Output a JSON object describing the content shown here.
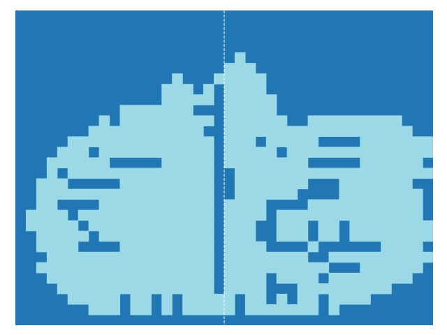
{
  "colors": {
    "wall": "#2077b4",
    "floor": "#9bd9e6",
    "divider": "#ffffff"
  },
  "maze": {
    "cols": 40,
    "rows": 30,
    "rows_map": [
      "0000000000000000000000000000000000000000",
      "0000000000000000000000000000000000000000",
      "0000000000000000000000000000000000000000",
      "0000000000000000000000000000000000000000",
      "0000000000000000000001000000000000000000",
      "0000000000000000000011100000000000000000",
      "0000000000000001000111110000000000000000",
      "0000000000000111101111110000000000000000",
      "0000000000001111111111111000000000000000",
      "0000000000111111110111111000000000000000",
      "0000000011111111111111111111111111111000",
      "0000000111111111111111111111111111111100",
      "0000011111111111111111111111111111111111",
      "0000111111111111111111111111111111111111",
      "0001111111111111111111111111111111111110",
      "0001111111111111111111111111111111111111",
      "0011111111111111111111111111111111111100",
      "0011111111111111111111111111111111111110",
      "0011111111111111111111111111111111111110",
      "0111111111111111111111111111111111111110",
      "0111111111111111111111111111111111111111",
      "0011111111111111111111111111111111111111",
      "0011111111111111111111111111111111111110",
      "0001111111111111111111111111111111111111",
      "0011111111111111111111111111111111111110",
      "0001111111111111111111111111111111111100",
      "0000111111111111111111111111111111110000",
      "0000011111111111111111111111111111000000",
      "0000000111111111111111111111111000000000",
      "0000000000000000000000000000000000000000"
    ],
    "inner_walls": [
      [
        6,
        5,
        1
      ],
      [
        7,
        11,
        3
      ],
      [
        8,
        12,
        2
      ],
      [
        9,
        9,
        1
      ],
      [
        9,
        17,
        2
      ],
      [
        10,
        5,
        1
      ],
      [
        10,
        9,
        1
      ],
      [
        10,
        26,
        2
      ],
      [
        11,
        5,
        1
      ],
      [
        11,
        18,
        1
      ],
      [
        12,
        23,
        1
      ],
      [
        12,
        29,
        4
      ],
      [
        13,
        7,
        1
      ],
      [
        13,
        25,
        1
      ],
      [
        14,
        9,
        5
      ],
      [
        14,
        28,
        5
      ],
      [
        15,
        4,
        1
      ],
      [
        15,
        20,
        1
      ],
      [
        16,
        5,
        5
      ],
      [
        16,
        19,
        2
      ],
      [
        16,
        28,
        3
      ],
      [
        17,
        19,
        2
      ],
      [
        17,
        27,
        4
      ],
      [
        18,
        4,
        4
      ],
      [
        18,
        24,
        4
      ],
      [
        19,
        5,
        1
      ],
      [
        19,
        24,
        1
      ],
      [
        20,
        6,
        1
      ],
      [
        20,
        23,
        2
      ],
      [
        20,
        28,
        1
      ],
      [
        20,
        31,
        1
      ],
      [
        21,
        7,
        1
      ],
      [
        21,
        23,
        2
      ],
      [
        21,
        28,
        1
      ],
      [
        21,
        31,
        1
      ],
      [
        22,
        6,
        4
      ],
      [
        22,
        24,
        4
      ],
      [
        22,
        29,
        6
      ],
      [
        23,
        28,
        2
      ],
      [
        24,
        30,
        3
      ],
      [
        25,
        24,
        1
      ],
      [
        25,
        29,
        1
      ],
      [
        26,
        24,
        2
      ],
      [
        26,
        26,
        1
      ],
      [
        27,
        10,
        1
      ],
      [
        27,
        13,
        1
      ],
      [
        27,
        15,
        1
      ],
      [
        27,
        21,
        1
      ],
      [
        27,
        24,
        1
      ],
      [
        27,
        26,
        1
      ],
      [
        27,
        29,
        1
      ],
      [
        28,
        10,
        1
      ],
      [
        28,
        13,
        1
      ],
      [
        28,
        15,
        1
      ],
      [
        28,
        21,
        1
      ],
      [
        28,
        29,
        1
      ],
      [
        7,
        19,
        1
      ],
      [
        8,
        19,
        1
      ],
      [
        9,
        19,
        1
      ],
      [
        10,
        19,
        1
      ],
      [
        11,
        19,
        1
      ],
      [
        12,
        19,
        1
      ],
      [
        13,
        19,
        1
      ],
      [
        14,
        19,
        1
      ],
      [
        15,
        19,
        1
      ],
      [
        16,
        19,
        1
      ],
      [
        17,
        19,
        1
      ],
      [
        18,
        19,
        1
      ],
      [
        19,
        19,
        1
      ],
      [
        20,
        19,
        1
      ],
      [
        21,
        19,
        1
      ],
      [
        22,
        19,
        1
      ],
      [
        23,
        19,
        1
      ],
      [
        24,
        19,
        1
      ],
      [
        25,
        19,
        1
      ],
      [
        26,
        19,
        1
      ]
    ],
    "divider_col": 20
  }
}
